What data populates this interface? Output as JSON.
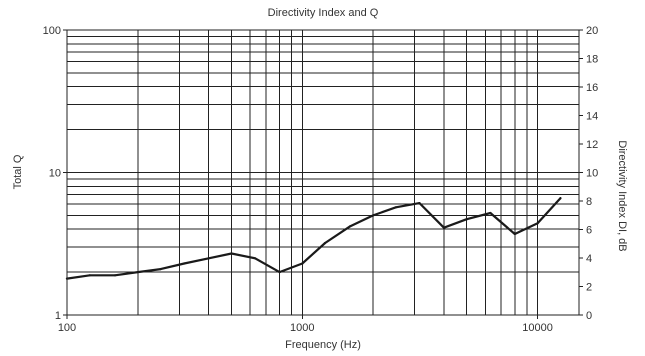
{
  "chart_data": {
    "type": "line",
    "title": "Directivity Index and Q",
    "xlabel": "Frequency (Hz)",
    "ylabel": "Total Q",
    "y2label": "Directivity Index DI, dB",
    "x_scale": "log",
    "y_scale": "log",
    "xlim": [
      100,
      15000
    ],
    "ylim": [
      1,
      100
    ],
    "y2lim": [
      0,
      20
    ],
    "x_tick_labels": [
      "100",
      "1000",
      "10000"
    ],
    "y_tick_labels": [
      "1",
      "10",
      "100"
    ],
    "y2_tick_labels": [
      "0",
      "2",
      "4",
      "6",
      "8",
      "10",
      "12",
      "14",
      "16",
      "18",
      "20"
    ],
    "grid": true,
    "series": [
      {
        "x": [
          100,
          125,
          160,
          200,
          250,
          315,
          400,
          500,
          630,
          800,
          1000,
          1250,
          1600,
          2000,
          2500,
          3150,
          4000,
          5000,
          6300,
          8000,
          10000,
          12500
        ],
        "y": [
          1.8,
          1.9,
          1.9,
          2.0,
          2.1,
          2.3,
          2.5,
          2.7,
          2.5,
          2.0,
          2.3,
          3.2,
          4.2,
          5.0,
          5.7,
          6.1,
          4.1,
          4.7,
          5.2,
          3.7,
          4.4,
          6.6
        ]
      }
    ],
    "colors": {
      "line": "#1a1a1a",
      "grid": "#222222",
      "text": "#333333"
    }
  }
}
